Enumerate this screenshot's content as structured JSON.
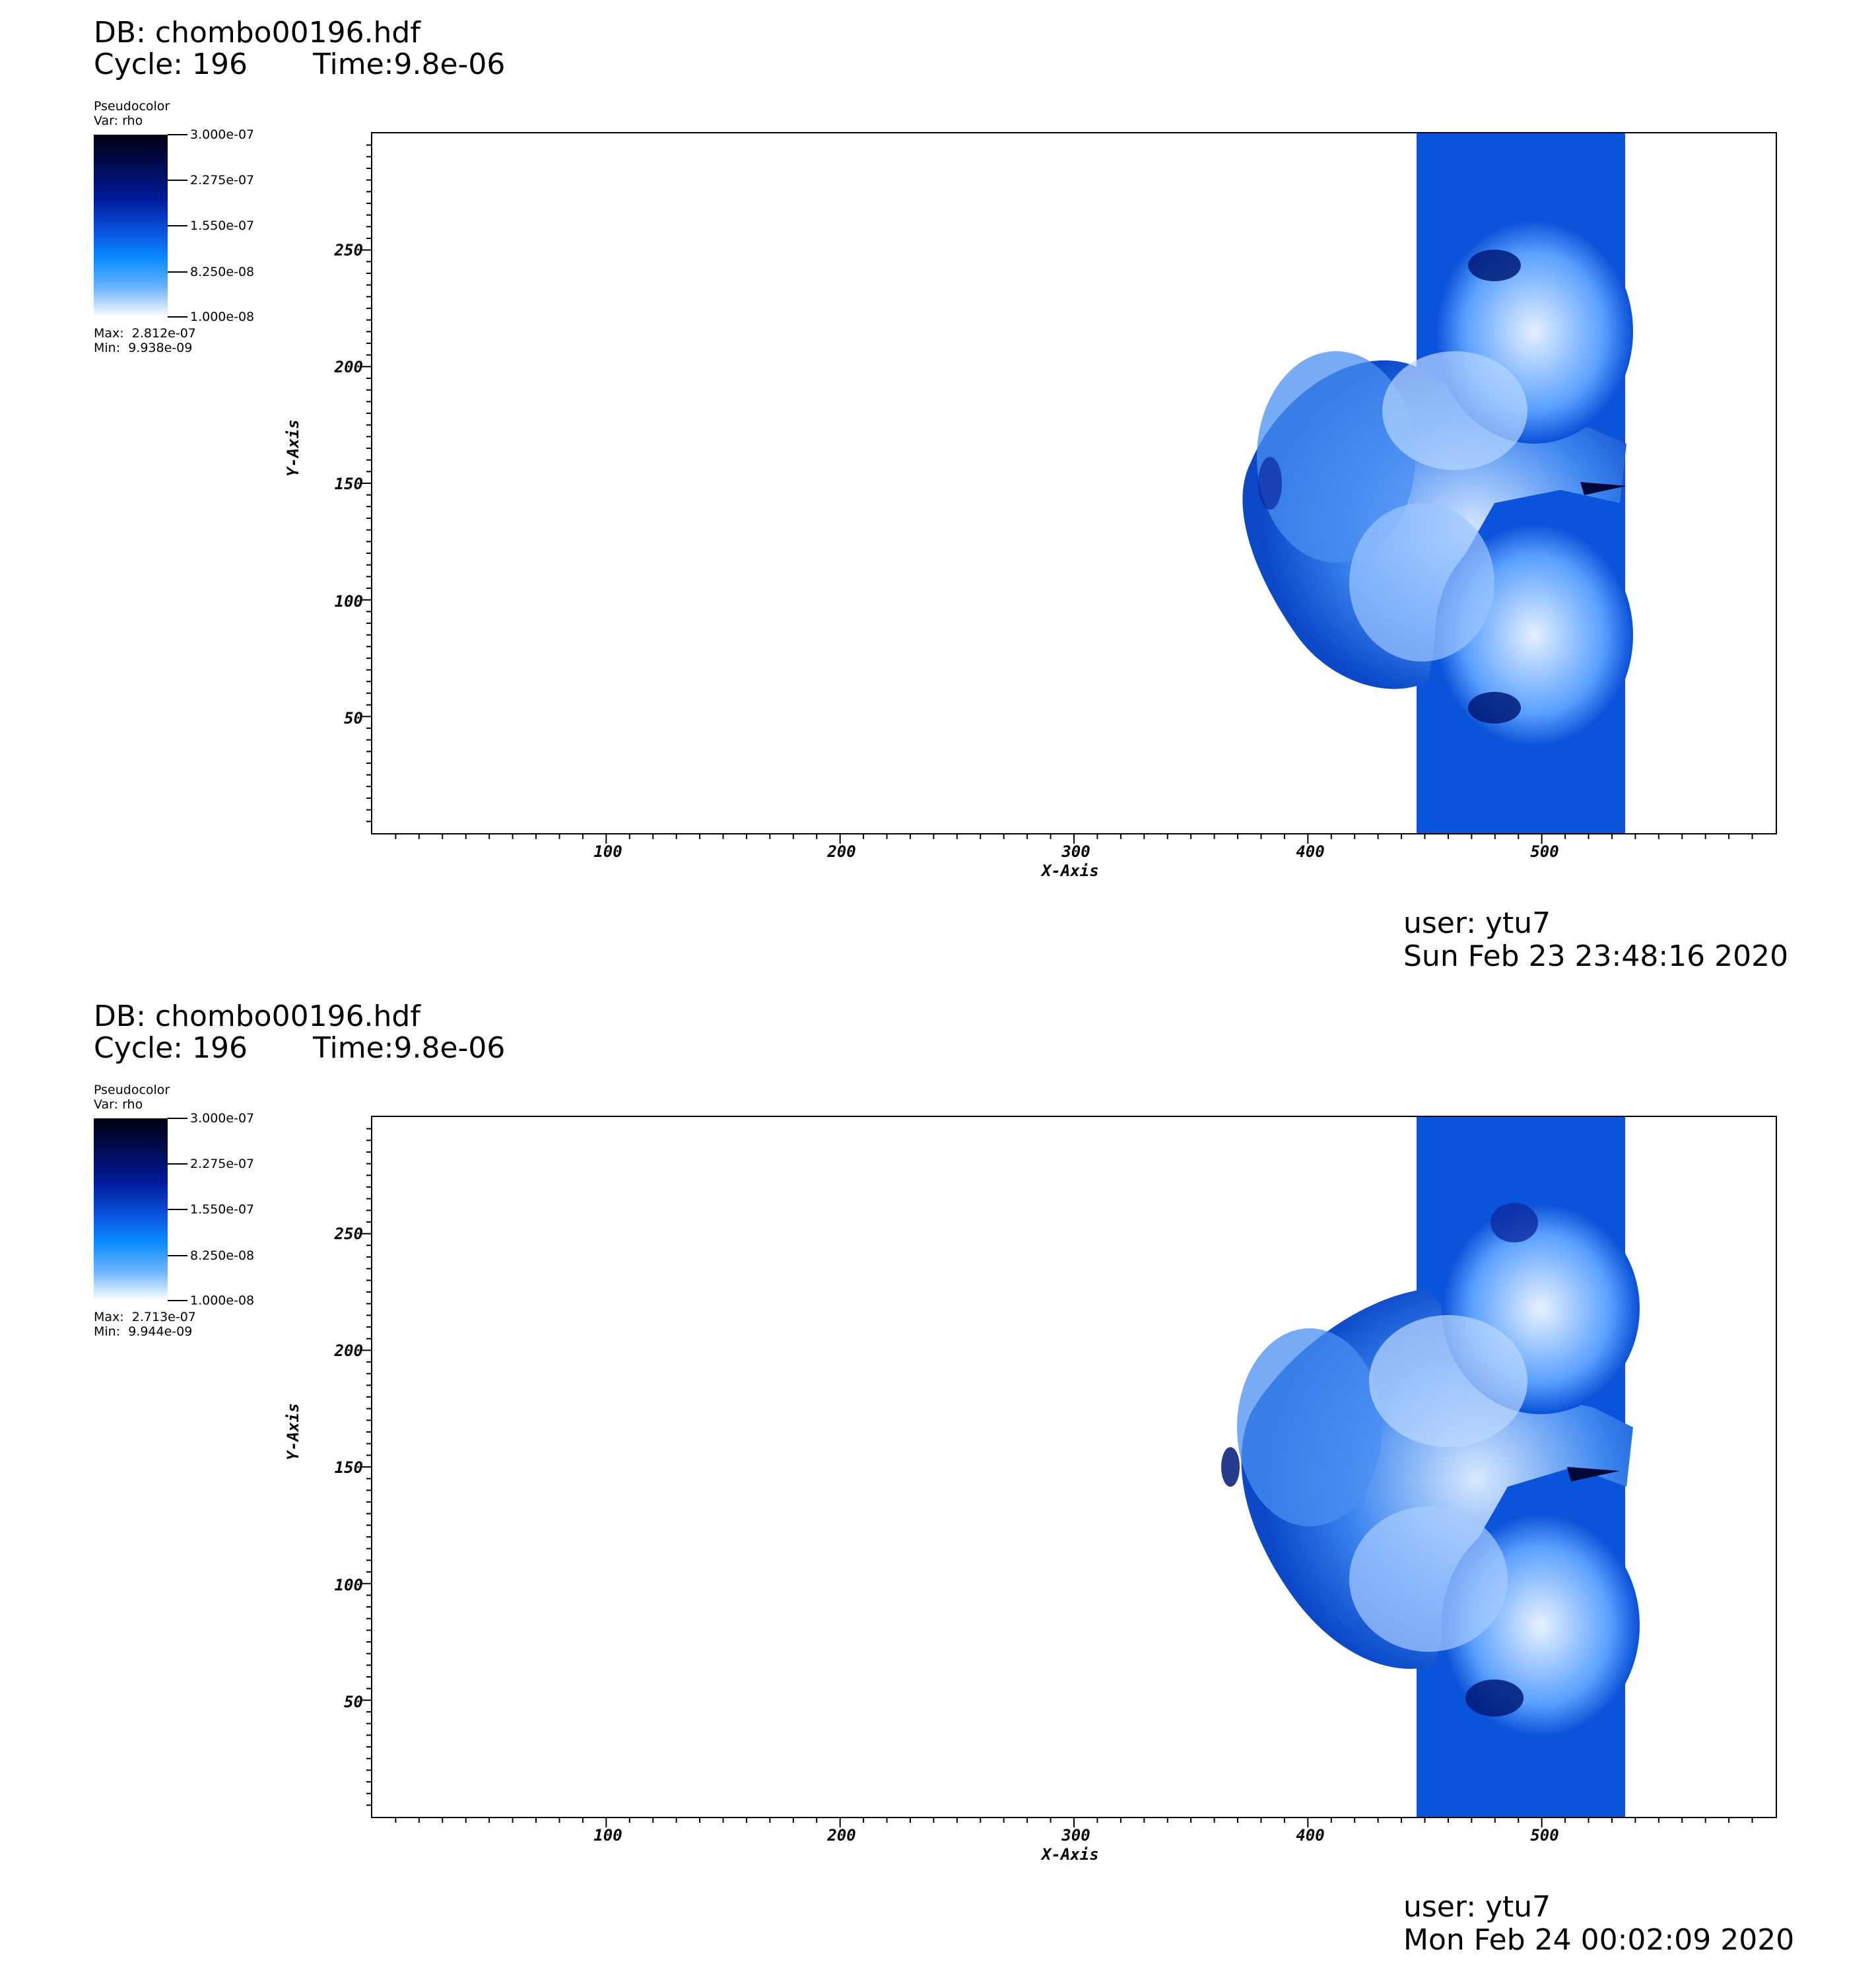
{
  "panels": [
    {
      "db_label": "DB: chombo00196.hdf",
      "cycle_label": "Cycle: 196",
      "time_label": "Time:9.8e-06",
      "plot_type": "Pseudocolor",
      "var_label": "Var: rho",
      "colorbar_ticks": [
        "3.000e-07",
        "2.275e-07",
        "1.550e-07",
        "8.250e-08",
        "1.000e-08"
      ],
      "max_label": "Max:  2.812e-07",
      "min_label": "Min:  9.938e-09",
      "user_label": "user: ytu7",
      "date_label": "Sun Feb 23 23:48:16 2020"
    },
    {
      "db_label": "DB: chombo00196.hdf",
      "cycle_label": "Cycle: 196",
      "time_label": "Time:9.8e-06",
      "plot_type": "Pseudocolor",
      "var_label": "Var: rho",
      "colorbar_ticks": [
        "3.000e-07",
        "2.275e-07",
        "1.550e-07",
        "8.250e-08",
        "1.000e-08"
      ],
      "max_label": "Max:  2.713e-07",
      "min_label": "Min:  9.944e-09",
      "user_label": "user: ytu7",
      "date_label": "Mon Feb 24 00:02:09 2020"
    }
  ],
  "colors": {
    "colormap_dark": "#000010",
    "colormap_mid": "#0a5ae6",
    "colormap_light": "#ffffff",
    "field_base": "#0a50d8"
  },
  "chart_data": [
    {
      "type": "heatmap",
      "variable": "rho",
      "xlabel": "X-Axis",
      "ylabel": "Y-Axis",
      "xlim": [
        0,
        600
      ],
      "ylim": [
        0,
        300
      ],
      "xticks": [
        "100",
        "200",
        "300",
        "400",
        "500"
      ],
      "yticks": [
        "50",
        "100",
        "150",
        "200",
        "250"
      ],
      "colorbar_range": [
        1e-08,
        3e-07
      ],
      "max": 2.812e-07,
      "min": 9.938e-09
    },
    {
      "type": "heatmap",
      "variable": "rho",
      "xlabel": "X-Axis",
      "ylabel": "Y-Axis",
      "xlim": [
        0,
        600
      ],
      "ylim": [
        0,
        300
      ],
      "xticks": [
        "100",
        "200",
        "300",
        "400",
        "500"
      ],
      "yticks": [
        "50",
        "100",
        "150",
        "200",
        "250"
      ],
      "colorbar_range": [
        1e-08,
        3e-07
      ],
      "max": 2.713e-07,
      "min": 9.944e-09
    }
  ]
}
